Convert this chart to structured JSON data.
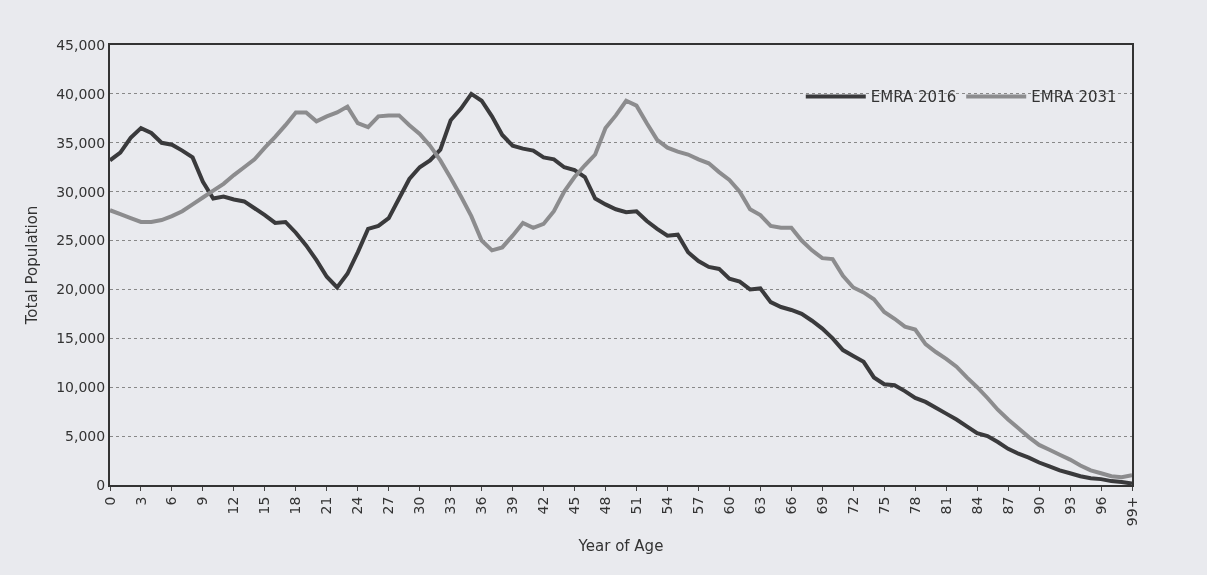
{
  "chart_data": {
    "type": "line",
    "xlabel": "Year of Age",
    "ylabel": "Total Population",
    "x": [
      0,
      1,
      2,
      3,
      4,
      5,
      6,
      7,
      8,
      9,
      10,
      11,
      12,
      13,
      14,
      15,
      16,
      17,
      18,
      19,
      20,
      21,
      22,
      23,
      24,
      25,
      26,
      27,
      28,
      29,
      30,
      31,
      32,
      33,
      34,
      35,
      36,
      37,
      38,
      39,
      40,
      41,
      42,
      43,
      44,
      45,
      46,
      47,
      48,
      49,
      50,
      51,
      52,
      53,
      54,
      55,
      56,
      57,
      58,
      59,
      60,
      61,
      62,
      63,
      64,
      65,
      66,
      67,
      68,
      69,
      70,
      71,
      72,
      73,
      74,
      75,
      76,
      77,
      78,
      79,
      80,
      81,
      82,
      83,
      84,
      85,
      86,
      87,
      88,
      89,
      90,
      91,
      92,
      93,
      94,
      95,
      96,
      97,
      98,
      99
    ],
    "series": [
      {
        "name": "EMRA 2016",
        "color": "#3a3a3c",
        "values": [
          33200,
          34000,
          35500,
          36500,
          36000,
          35000,
          34800,
          34200,
          33500,
          31000,
          29300,
          29500,
          29200,
          29000,
          28300,
          27600,
          26800,
          26900,
          25800,
          24500,
          23000,
          21300,
          20200,
          21600,
          23800,
          26200,
          26500,
          27300,
          29300,
          31300,
          32500,
          33200,
          34300,
          37300,
          38500,
          40000,
          39300,
          37700,
          35800,
          34700,
          34400,
          34200,
          33500,
          33300,
          32500,
          32200,
          31500,
          29300,
          28700,
          28200,
          27900,
          28000,
          27000,
          26200,
          25500,
          25600,
          23800,
          22900,
          22300,
          22100,
          21100,
          20800,
          20000,
          20100,
          18700,
          18200,
          17900,
          17500,
          16800,
          16000,
          15000,
          13800,
          13200,
          12600,
          11000,
          10300,
          10200,
          9600,
          8900,
          8500,
          7900,
          7300,
          6700,
          6000,
          5300,
          5000,
          4400,
          3700,
          3200,
          2800,
          2300,
          1900,
          1500,
          1200,
          900,
          700,
          600,
          400,
          300,
          150
        ]
      },
      {
        "name": "EMRA 2031",
        "color": "#8c8c8e",
        "values": [
          28100,
          27700,
          27300,
          26900,
          26900,
          27100,
          27500,
          28000,
          28700,
          29400,
          30100,
          30800,
          31700,
          32500,
          33300,
          34500,
          35600,
          36800,
          38100,
          38100,
          37200,
          37700,
          38100,
          38700,
          37000,
          36600,
          37700,
          37800,
          37800,
          36800,
          35900,
          34700,
          33200,
          31400,
          29500,
          27500,
          25000,
          24000,
          24300,
          25500,
          26800,
          26300,
          26700,
          28000,
          30000,
          31500,
          32700,
          33800,
          36500,
          37800,
          39300,
          38800,
          37000,
          35300,
          34500,
          34100,
          33800,
          33300,
          32900,
          32000,
          31200,
          30000,
          28200,
          27600,
          26500,
          26300,
          26300,
          25000,
          24000,
          23200,
          23100,
          21400,
          20200,
          19700,
          19000,
          17700,
          17000,
          16200,
          15900,
          14400,
          13600,
          12900,
          12100,
          11000,
          10000,
          8900,
          7700,
          6700,
          5800,
          4900,
          4100,
          3600,
          3100,
          2600,
          2000,
          1500,
          1200,
          900,
          800,
          1000
        ]
      }
    ],
    "xlim": [
      0,
      99
    ],
    "xticks": [
      0,
      3,
      6,
      9,
      12,
      15,
      18,
      21,
      24,
      27,
      30,
      33,
      36,
      39,
      42,
      45,
      48,
      51,
      54,
      57,
      60,
      63,
      66,
      69,
      72,
      75,
      78,
      81,
      84,
      87,
      90,
      93,
      96,
      {
        "value": 99,
        "label": "99+"
      }
    ],
    "ylim": [
      0,
      45000
    ],
    "yticks": [
      {
        "value": 0,
        "label": "0"
      },
      {
        "value": 5000,
        "label": "5,000"
      },
      {
        "value": 10000,
        "label": "10,000"
      },
      {
        "value": 15000,
        "label": "15,000"
      },
      {
        "value": 20000,
        "label": "20,000"
      },
      {
        "value": 25000,
        "label": "25,000"
      },
      {
        "value": 30000,
        "label": "30,000"
      },
      {
        "value": 35000,
        "label": "35,000"
      },
      {
        "value": 40000,
        "label": "40,000"
      },
      {
        "value": 45000,
        "label": "45,000"
      }
    ],
    "grid": "y",
    "legend": "top right",
    "marker": "none",
    "line_style": "solid"
  }
}
